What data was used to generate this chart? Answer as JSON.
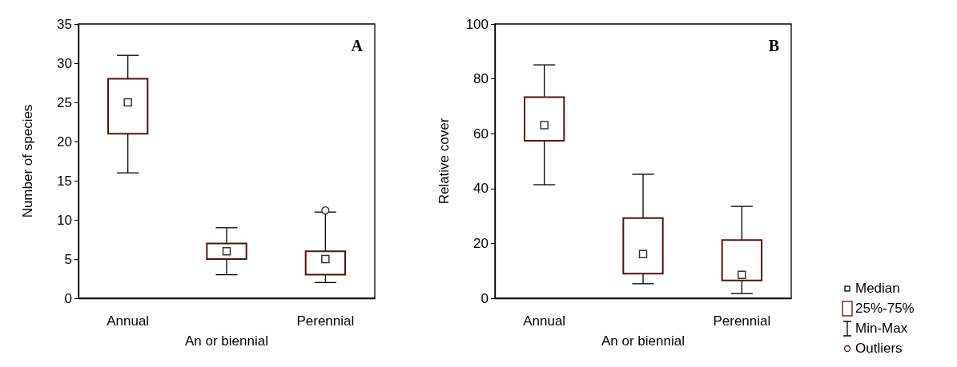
{
  "chart_data": [
    {
      "type": "box",
      "title": "A",
      "xlabel": "An or biennial",
      "ylabel": "Number of species",
      "categories": [
        "Annual",
        null,
        "Perennial"
      ],
      "color": "#5a1010",
      "marker": "square",
      "ylim": [
        0,
        35
      ],
      "yticks": [
        0,
        5,
        10,
        15,
        20,
        25,
        30,
        35
      ],
      "boxes": [
        {
          "low": 16,
          "q1": 21,
          "median": 25,
          "q3": 28,
          "high": 31
        },
        {
          "low": 3,
          "q1": 5,
          "median": 6,
          "q3": 7,
          "high": 9
        },
        {
          "low": 2,
          "q1": 3,
          "median": 5,
          "q3": 6,
          "high": 11,
          "outliers": [
            11.2
          ]
        }
      ]
    },
    {
      "type": "box",
      "title": "B",
      "xlabel": "An or biennial",
      "ylabel": "Relative cover",
      "categories": [
        "Annual",
        null,
        "Perennial"
      ],
      "color": "#5a1010",
      "marker": "square",
      "ylim": [
        0,
        100
      ],
      "yticks": [
        0,
        20,
        40,
        60,
        80,
        100
      ],
      "annotations": [
        "Median",
        "25%-75%",
        "Min-Max",
        "Outliers"
      ],
      "boxes": [
        {
          "low": 41.4,
          "q1": 57.4,
          "median": 63.1,
          "q3": 73.3,
          "high": 85.1
        },
        {
          "low": 5.3,
          "q1": 9,
          "median": 16.1,
          "q3": 29.2,
          "high": 45.2
        },
        {
          "low": 1.7,
          "q1": 6.5,
          "median": 8.5,
          "q3": 21.2,
          "high": 33.5
        }
      ]
    }
  ]
}
